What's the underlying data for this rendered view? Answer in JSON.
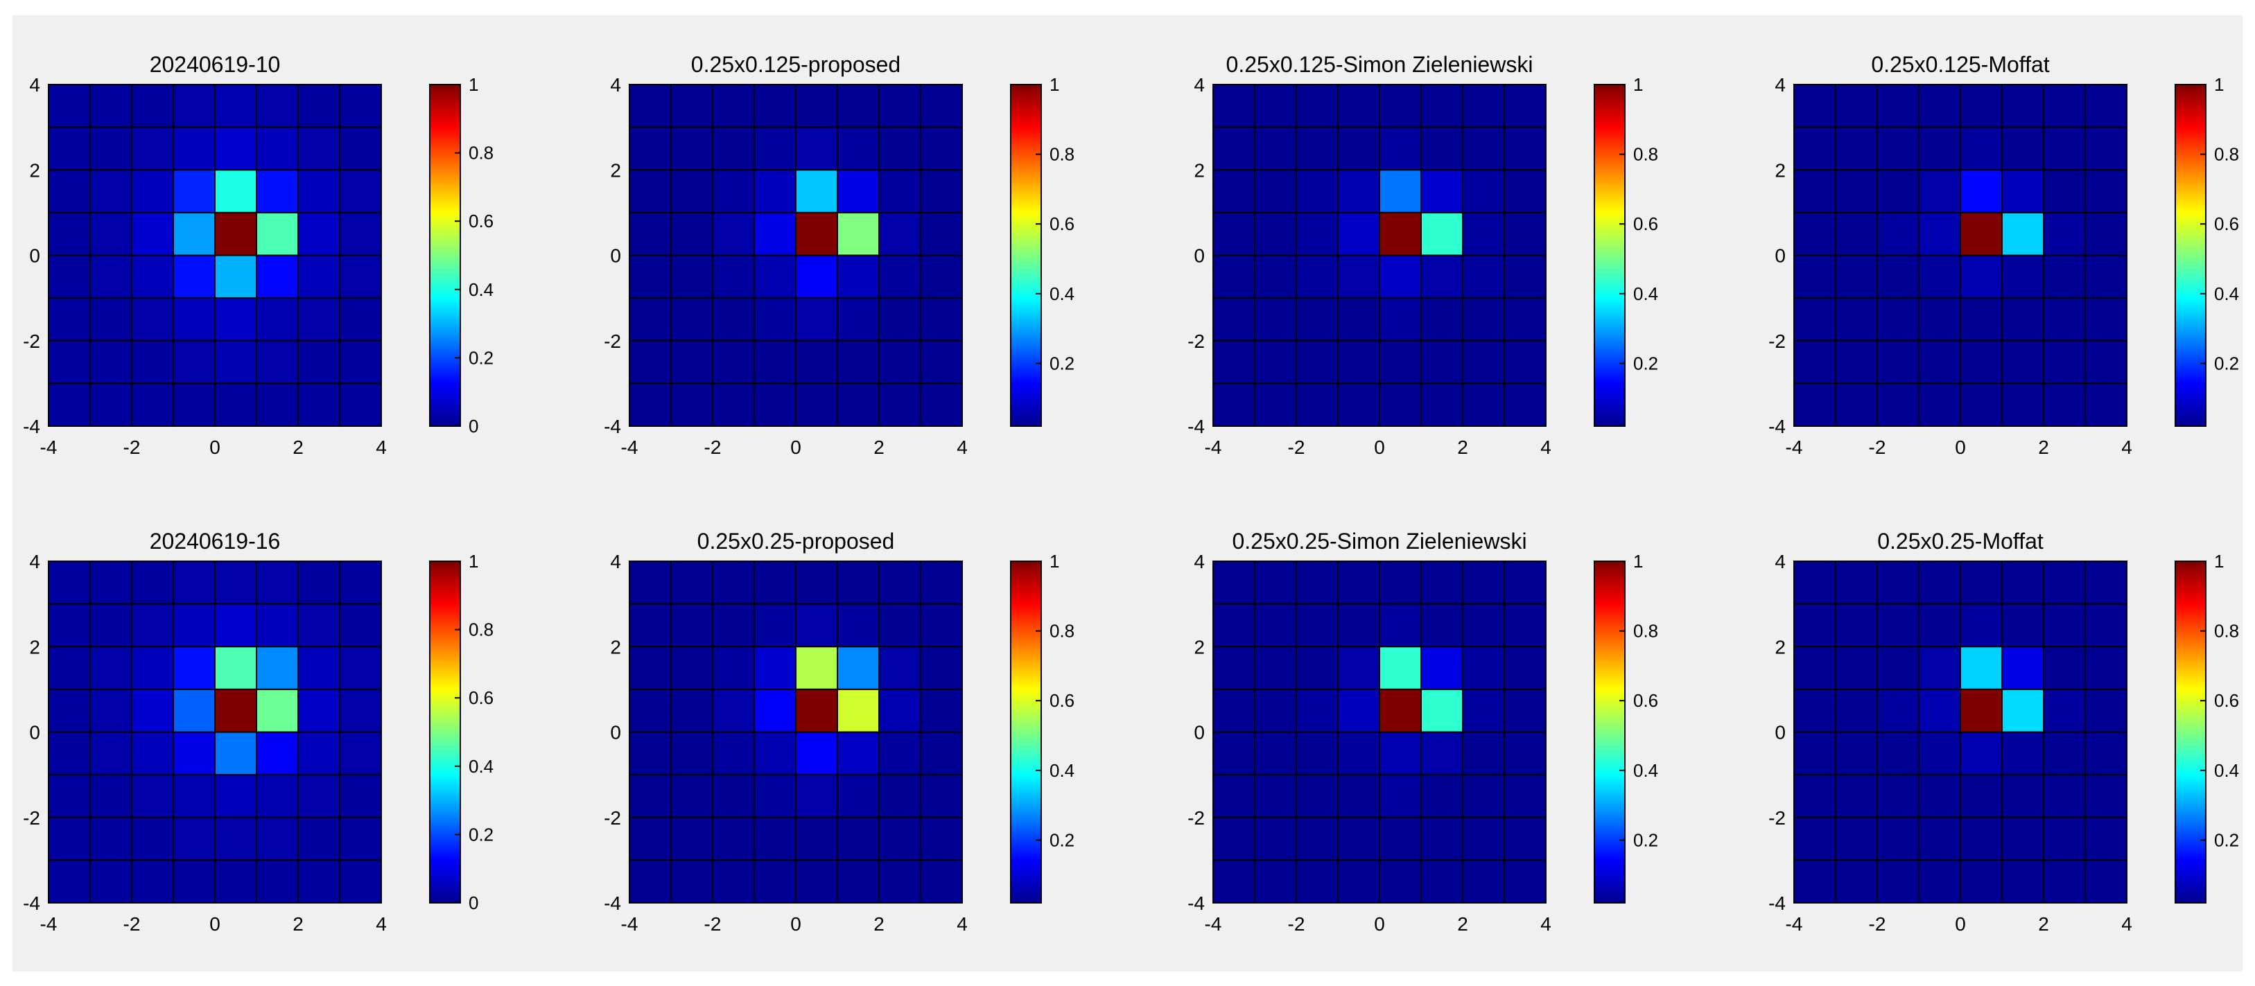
{
  "colors": {
    "background": "#f0f0f0",
    "cell_border": "#000000",
    "colormap": "jet"
  },
  "chart_data": [
    {
      "type": "heatmap",
      "title": "20240619-10",
      "x": [
        -3.5,
        -2.5,
        -1.5,
        -0.5,
        0.5,
        1.5,
        2.5,
        3.5
      ],
      "y": [
        3.5,
        2.5,
        1.5,
        0.5,
        -0.5,
        -1.5,
        -2.5,
        -3.5
      ],
      "xlim": [
        -4,
        4
      ],
      "ylim": [
        -4,
        4
      ],
      "xticks": [
        "-4",
        "-2",
        "0",
        "2",
        "4"
      ],
      "yticks": [
        "4",
        "2",
        "0",
        "-2",
        "-4"
      ],
      "z": [
        [
          0.03,
          0.03,
          0.03,
          0.04,
          0.05,
          0.04,
          0.03,
          0.03
        ],
        [
          0.03,
          0.03,
          0.04,
          0.06,
          0.08,
          0.06,
          0.04,
          0.03
        ],
        [
          0.03,
          0.04,
          0.06,
          0.16,
          0.4,
          0.14,
          0.06,
          0.04
        ],
        [
          0.03,
          0.04,
          0.08,
          0.28,
          1.0,
          0.45,
          0.07,
          0.04
        ],
        [
          0.03,
          0.04,
          0.06,
          0.14,
          0.3,
          0.13,
          0.06,
          0.04
        ],
        [
          0.03,
          0.03,
          0.04,
          0.06,
          0.07,
          0.05,
          0.04,
          0.03
        ],
        [
          0.03,
          0.03,
          0.03,
          0.04,
          0.05,
          0.04,
          0.03,
          0.03
        ],
        [
          0.03,
          0.03,
          0.03,
          0.03,
          0.03,
          0.03,
          0.03,
          0.03
        ]
      ],
      "colorbar": {
        "range": [
          0,
          1
        ],
        "ticks": [
          "0",
          "0.2",
          "0.4",
          "0.6",
          "0.8",
          "1"
        ]
      }
    },
    {
      "type": "heatmap",
      "title": "0.25x0.125-proposed",
      "x": [
        -3.5,
        -2.5,
        -1.5,
        -0.5,
        0.5,
        1.5,
        2.5,
        3.5
      ],
      "y": [
        3.5,
        2.5,
        1.5,
        0.5,
        -0.5,
        -1.5,
        -2.5,
        -3.5
      ],
      "xlim": [
        -4,
        4
      ],
      "ylim": [
        -4,
        4
      ],
      "xticks": [
        "-4",
        "-2",
        "0",
        "2",
        "4"
      ],
      "yticks": [
        "4",
        "2",
        "0",
        "-2",
        "-4"
      ],
      "z": [
        [
          0.02,
          0.02,
          0.02,
          0.02,
          0.02,
          0.02,
          0.02,
          0.02
        ],
        [
          0.02,
          0.02,
          0.02,
          0.03,
          0.04,
          0.03,
          0.02,
          0.02
        ],
        [
          0.02,
          0.02,
          0.03,
          0.06,
          0.32,
          0.1,
          0.03,
          0.02
        ],
        [
          0.02,
          0.02,
          0.04,
          0.1,
          1.0,
          0.5,
          0.04,
          0.02
        ],
        [
          0.02,
          0.02,
          0.03,
          0.05,
          0.12,
          0.06,
          0.03,
          0.02
        ],
        [
          0.02,
          0.02,
          0.02,
          0.03,
          0.04,
          0.03,
          0.02,
          0.02
        ],
        [
          0.02,
          0.02,
          0.02,
          0.02,
          0.02,
          0.02,
          0.02,
          0.02
        ],
        [
          0.02,
          0.02,
          0.02,
          0.02,
          0.02,
          0.02,
          0.02,
          0.02
        ]
      ],
      "colorbar": {
        "range": [
          0.02,
          1
        ],
        "ticks": [
          "0.2",
          "0.4",
          "0.6",
          "0.8",
          "1"
        ]
      }
    },
    {
      "type": "heatmap",
      "title": "0.25x0.125-Simon Zieleniewski",
      "x": [
        -3.5,
        -2.5,
        -1.5,
        -0.5,
        0.5,
        1.5,
        2.5,
        3.5
      ],
      "y": [
        3.5,
        2.5,
        1.5,
        0.5,
        -0.5,
        -1.5,
        -2.5,
        -3.5
      ],
      "xlim": [
        -4,
        4
      ],
      "ylim": [
        -4,
        4
      ],
      "xticks": [
        "-4",
        "-2",
        "0",
        "2",
        "4"
      ],
      "yticks": [
        "4",
        "2",
        "0",
        "-2",
        "-4"
      ],
      "z": [
        [
          0.02,
          0.02,
          0.02,
          0.02,
          0.02,
          0.02,
          0.02,
          0.02
        ],
        [
          0.02,
          0.02,
          0.02,
          0.02,
          0.03,
          0.02,
          0.02,
          0.02
        ],
        [
          0.02,
          0.02,
          0.03,
          0.05,
          0.24,
          0.08,
          0.03,
          0.02
        ],
        [
          0.02,
          0.02,
          0.03,
          0.07,
          1.0,
          0.42,
          0.03,
          0.02
        ],
        [
          0.02,
          0.02,
          0.03,
          0.04,
          0.07,
          0.04,
          0.03,
          0.02
        ],
        [
          0.02,
          0.02,
          0.02,
          0.02,
          0.03,
          0.02,
          0.02,
          0.02
        ],
        [
          0.02,
          0.02,
          0.02,
          0.02,
          0.02,
          0.02,
          0.02,
          0.02
        ],
        [
          0.02,
          0.02,
          0.02,
          0.02,
          0.02,
          0.02,
          0.02,
          0.02
        ]
      ],
      "colorbar": {
        "range": [
          0.02,
          1
        ],
        "ticks": [
          "0.2",
          "0.4",
          "0.6",
          "0.8",
          "1"
        ]
      }
    },
    {
      "type": "heatmap",
      "title": "0.25x0.125-Moffat",
      "x": [
        -3.5,
        -2.5,
        -1.5,
        -0.5,
        0.5,
        1.5,
        2.5,
        3.5
      ],
      "y": [
        3.5,
        2.5,
        1.5,
        0.5,
        -0.5,
        -1.5,
        -2.5,
        -3.5
      ],
      "xlim": [
        -4,
        4
      ],
      "ylim": [
        -4,
        4
      ],
      "xticks": [
        "-4",
        "-2",
        "0",
        "2",
        "4"
      ],
      "yticks": [
        "4",
        "2",
        "0",
        "-2",
        "-4"
      ],
      "z": [
        [
          0.02,
          0.02,
          0.02,
          0.02,
          0.02,
          0.02,
          0.02,
          0.02
        ],
        [
          0.02,
          0.02,
          0.02,
          0.02,
          0.03,
          0.02,
          0.02,
          0.02
        ],
        [
          0.02,
          0.02,
          0.02,
          0.04,
          0.13,
          0.06,
          0.02,
          0.02
        ],
        [
          0.02,
          0.02,
          0.03,
          0.05,
          1.0,
          0.33,
          0.03,
          0.02
        ],
        [
          0.02,
          0.02,
          0.02,
          0.03,
          0.05,
          0.03,
          0.02,
          0.02
        ],
        [
          0.02,
          0.02,
          0.02,
          0.02,
          0.02,
          0.02,
          0.02,
          0.02
        ],
        [
          0.02,
          0.02,
          0.02,
          0.02,
          0.02,
          0.02,
          0.02,
          0.02
        ],
        [
          0.02,
          0.02,
          0.02,
          0.02,
          0.02,
          0.02,
          0.02,
          0.02
        ]
      ],
      "colorbar": {
        "range": [
          0.02,
          1
        ],
        "ticks": [
          "0.2",
          "0.4",
          "0.6",
          "0.8",
          "1"
        ]
      }
    },
    {
      "type": "heatmap",
      "title": "20240619-16",
      "x": [
        -3.5,
        -2.5,
        -1.5,
        -0.5,
        0.5,
        1.5,
        2.5,
        3.5
      ],
      "y": [
        3.5,
        2.5,
        1.5,
        0.5,
        -0.5,
        -1.5,
        -2.5,
        -3.5
      ],
      "xlim": [
        -4,
        4
      ],
      "ylim": [
        -4,
        4
      ],
      "xticks": [
        "-4",
        "-2",
        "0",
        "2",
        "4"
      ],
      "yticks": [
        "4",
        "2",
        "0",
        "-2",
        "-4"
      ],
      "z": [
        [
          0.03,
          0.03,
          0.03,
          0.04,
          0.04,
          0.04,
          0.03,
          0.03
        ],
        [
          0.03,
          0.03,
          0.04,
          0.06,
          0.08,
          0.06,
          0.04,
          0.03
        ],
        [
          0.03,
          0.04,
          0.06,
          0.14,
          0.45,
          0.26,
          0.06,
          0.04
        ],
        [
          0.03,
          0.04,
          0.08,
          0.22,
          1.0,
          0.48,
          0.07,
          0.04
        ],
        [
          0.03,
          0.04,
          0.06,
          0.1,
          0.24,
          0.12,
          0.06,
          0.04
        ],
        [
          0.03,
          0.03,
          0.04,
          0.05,
          0.06,
          0.05,
          0.04,
          0.03
        ],
        [
          0.03,
          0.03,
          0.03,
          0.04,
          0.04,
          0.04,
          0.03,
          0.03
        ],
        [
          0.03,
          0.03,
          0.03,
          0.03,
          0.03,
          0.03,
          0.03,
          0.03
        ]
      ],
      "colorbar": {
        "range": [
          0,
          1
        ],
        "ticks": [
          "0",
          "0.2",
          "0.4",
          "0.6",
          "0.8",
          "1"
        ]
      }
    },
    {
      "type": "heatmap",
      "title": "0.25x0.25-proposed",
      "x": [
        -3.5,
        -2.5,
        -1.5,
        -0.5,
        0.5,
        1.5,
        2.5,
        3.5
      ],
      "y": [
        3.5,
        2.5,
        1.5,
        0.5,
        -0.5,
        -1.5,
        -2.5,
        -3.5
      ],
      "xlim": [
        -4,
        4
      ],
      "ylim": [
        -4,
        4
      ],
      "xticks": [
        "-4",
        "-2",
        "0",
        "2",
        "4"
      ],
      "yticks": [
        "4",
        "2",
        "0",
        "-2",
        "-4"
      ],
      "z": [
        [
          0.02,
          0.02,
          0.02,
          0.02,
          0.02,
          0.02,
          0.02,
          0.02
        ],
        [
          0.02,
          0.02,
          0.02,
          0.03,
          0.04,
          0.03,
          0.02,
          0.02
        ],
        [
          0.02,
          0.02,
          0.03,
          0.08,
          0.55,
          0.26,
          0.04,
          0.02
        ],
        [
          0.02,
          0.02,
          0.04,
          0.12,
          1.0,
          0.58,
          0.05,
          0.02
        ],
        [
          0.02,
          0.02,
          0.03,
          0.05,
          0.12,
          0.07,
          0.03,
          0.02
        ],
        [
          0.02,
          0.02,
          0.02,
          0.03,
          0.04,
          0.03,
          0.02,
          0.02
        ],
        [
          0.02,
          0.02,
          0.02,
          0.02,
          0.02,
          0.02,
          0.02,
          0.02
        ],
        [
          0.02,
          0.02,
          0.02,
          0.02,
          0.02,
          0.02,
          0.02,
          0.02
        ]
      ],
      "colorbar": {
        "range": [
          0.02,
          1
        ],
        "ticks": [
          "0.2",
          "0.4",
          "0.6",
          "0.8",
          "1"
        ]
      }
    },
    {
      "type": "heatmap",
      "title": "0.25x0.25-Simon Zieleniewski",
      "x": [
        -3.5,
        -2.5,
        -1.5,
        -0.5,
        0.5,
        1.5,
        2.5,
        3.5
      ],
      "y": [
        3.5,
        2.5,
        1.5,
        0.5,
        -0.5,
        -1.5,
        -2.5,
        -3.5
      ],
      "xlim": [
        -4,
        4
      ],
      "ylim": [
        -4,
        4
      ],
      "xticks": [
        "-4",
        "-2",
        "0",
        "2",
        "4"
      ],
      "yticks": [
        "4",
        "2",
        "0",
        "-2",
        "-4"
      ],
      "z": [
        [
          0.02,
          0.02,
          0.02,
          0.02,
          0.02,
          0.02,
          0.02,
          0.02
        ],
        [
          0.02,
          0.02,
          0.02,
          0.02,
          0.03,
          0.02,
          0.02,
          0.02
        ],
        [
          0.02,
          0.02,
          0.02,
          0.04,
          0.42,
          0.1,
          0.03,
          0.02
        ],
        [
          0.02,
          0.02,
          0.03,
          0.06,
          1.0,
          0.42,
          0.03,
          0.02
        ],
        [
          0.02,
          0.02,
          0.02,
          0.03,
          0.05,
          0.04,
          0.02,
          0.02
        ],
        [
          0.02,
          0.02,
          0.02,
          0.02,
          0.03,
          0.02,
          0.02,
          0.02
        ],
        [
          0.02,
          0.02,
          0.02,
          0.02,
          0.02,
          0.02,
          0.02,
          0.02
        ],
        [
          0.02,
          0.02,
          0.02,
          0.02,
          0.02,
          0.02,
          0.02,
          0.02
        ]
      ],
      "colorbar": {
        "range": [
          0.02,
          1
        ],
        "ticks": [
          "0.2",
          "0.4",
          "0.6",
          "0.8",
          "1"
        ]
      }
    },
    {
      "type": "heatmap",
      "title": "0.25x0.25-Moffat",
      "x": [
        -3.5,
        -2.5,
        -1.5,
        -0.5,
        0.5,
        1.5,
        2.5,
        3.5
      ],
      "y": [
        3.5,
        2.5,
        1.5,
        0.5,
        -0.5,
        -1.5,
        -2.5,
        -3.5
      ],
      "xlim": [
        -4,
        4
      ],
      "ylim": [
        -4,
        4
      ],
      "xticks": [
        "-4",
        "-2",
        "0",
        "2",
        "4"
      ],
      "yticks": [
        "4",
        "2",
        "0",
        "-2",
        "-4"
      ],
      "z": [
        [
          0.02,
          0.02,
          0.02,
          0.02,
          0.02,
          0.02,
          0.02,
          0.02
        ],
        [
          0.02,
          0.02,
          0.02,
          0.02,
          0.03,
          0.02,
          0.02,
          0.02
        ],
        [
          0.02,
          0.02,
          0.02,
          0.04,
          0.33,
          0.1,
          0.02,
          0.02
        ],
        [
          0.02,
          0.02,
          0.03,
          0.05,
          1.0,
          0.34,
          0.03,
          0.02
        ],
        [
          0.02,
          0.02,
          0.02,
          0.03,
          0.05,
          0.03,
          0.02,
          0.02
        ],
        [
          0.02,
          0.02,
          0.02,
          0.02,
          0.02,
          0.02,
          0.02,
          0.02
        ],
        [
          0.02,
          0.02,
          0.02,
          0.02,
          0.02,
          0.02,
          0.02,
          0.02
        ],
        [
          0.02,
          0.02,
          0.02,
          0.02,
          0.02,
          0.02,
          0.02,
          0.02
        ]
      ],
      "colorbar": {
        "range": [
          0.02,
          1
        ],
        "ticks": [
          "0.2",
          "0.4",
          "0.6",
          "0.8",
          "1"
        ]
      }
    }
  ]
}
